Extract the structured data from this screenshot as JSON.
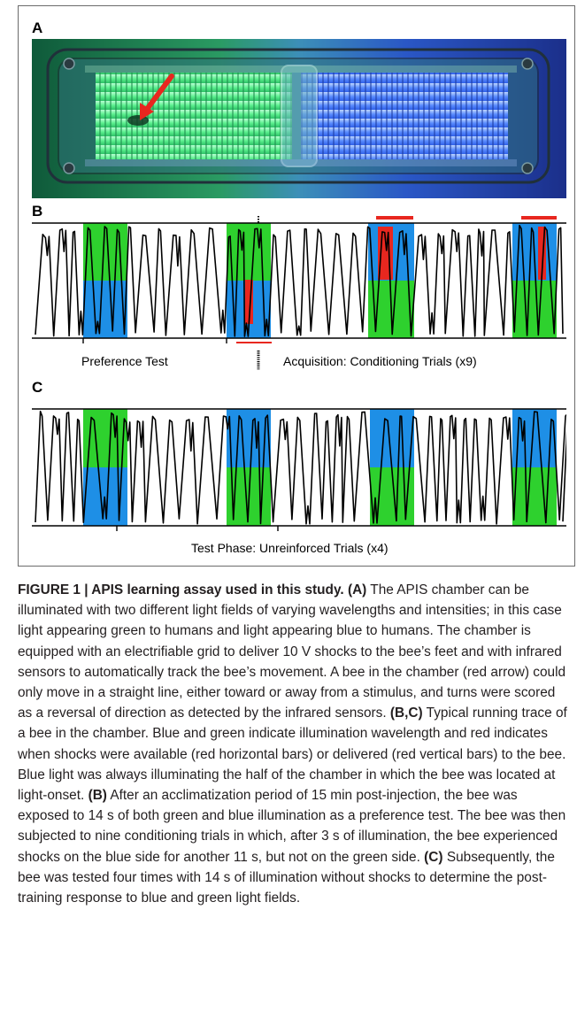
{
  "figure": {
    "panel_labels": {
      "a": "A",
      "b": "B",
      "c": "C"
    },
    "panel_b_labels": {
      "preference": "Preference Test",
      "acquisition": "Acquisition: Conditioning Trials (x9)"
    },
    "panel_c_labels": {
      "test": "Test Phase: Unreinforced Trials (x4)"
    },
    "colors": {
      "green": "#2ed12e",
      "blue": "#1e8fe6",
      "red": "#e8271f",
      "trace": "#000000"
    }
  },
  "caption": {
    "heading": "FIGURE 1 | APIS learning assay used in this study.",
    "segments": [
      {
        "bold": true,
        "text": "(A)"
      },
      {
        "bold": false,
        "text": " The APIS chamber can be illuminated with two different light fields of varying wavelengths and intensities; in this case light appearing green to humans and light appearing blue to humans. The chamber is equipped with an electrifiable grid to deliver 10 V shocks to the bee’s feet and with infrared sensors to automatically track the bee’s movement. A bee in the chamber (red arrow) could only move in a straight line, either toward or away from a stimulus, and turns were scored as a reversal of direction as detected by the infrared sensors. "
      },
      {
        "bold": true,
        "text": "(B,C)"
      },
      {
        "bold": false,
        "text": " Typical running trace of a bee in the chamber. Blue and green indicate illumination wavelength and red indicates when shocks were available (red horizontal bars) or delivered (red vertical bars) to the bee. Blue light was always illuminating the half of the chamber in which the bee was located at light-onset. "
      },
      {
        "bold": true,
        "text": "(B)"
      },
      {
        "bold": false,
        "text": " After an acclimatization period of 15 min post-injection, the bee was exposed to 14 s of both green and blue illumination as a preference test. The bee was then subjected to nine conditioning trials in which, after 3 s of illumination, the bee experienced shocks on the blue side for another 11 s, but not on the green side. "
      },
      {
        "bold": true,
        "text": "(C)"
      },
      {
        "bold": false,
        "text": " Subsequently, the bee was tested four times with 14 s of illumination without shocks to determine the post-training response to blue and green light fields."
      }
    ]
  }
}
